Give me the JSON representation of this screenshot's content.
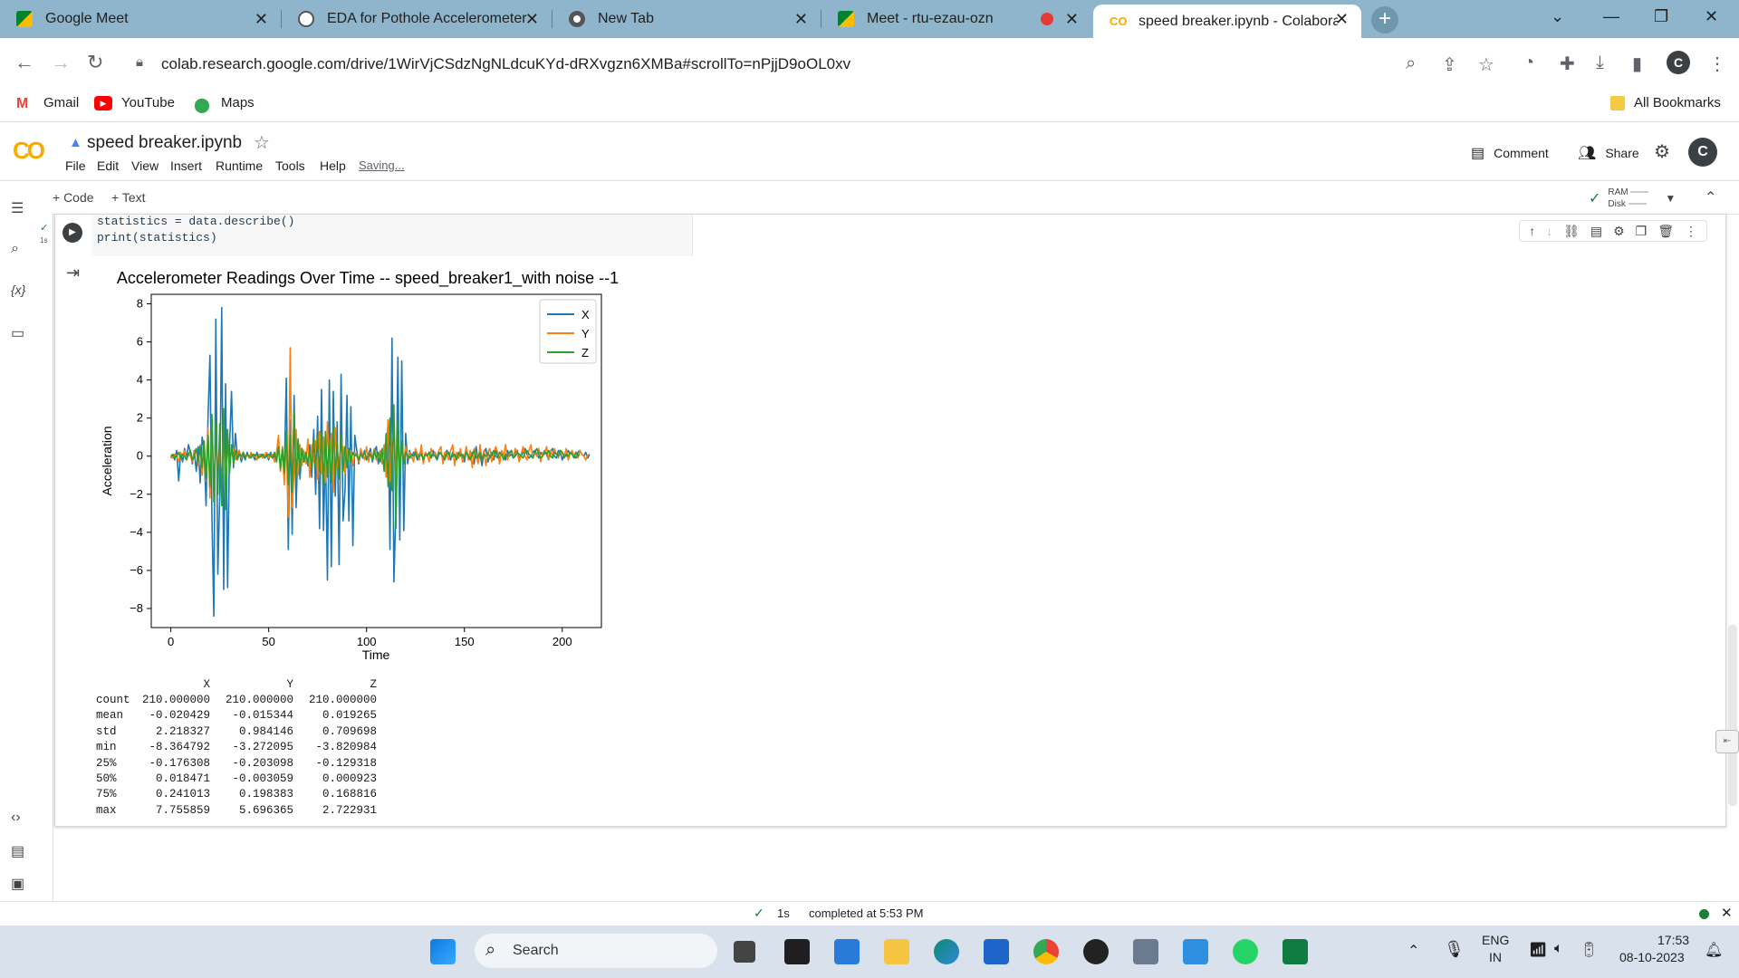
{
  "browser": {
    "tabs": [
      {
        "title": "Google Meet",
        "icon": "meet-icon"
      },
      {
        "title": "EDA for Pothole Accelerometer D",
        "icon": "openai-icon"
      },
      {
        "title": "New Tab",
        "icon": "chrome-icon"
      },
      {
        "title": "Meet - rtu-ezau-ozn",
        "icon": "meet-icon"
      },
      {
        "title": "speed breaker.ipynb - Colaborat",
        "icon": "colab-icon"
      }
    ],
    "url": "colab.research.google.com/drive/1WirVjCSdzNgNLdcuKYd-dRXvgzn6XMBa#scrollTo=nPjjD9oOL0xv",
    "profile_initial": "C",
    "bookmarks": [
      "Gmail",
      "YouTube",
      "Maps"
    ],
    "all_bookmarks": "All Bookmarks"
  },
  "colab": {
    "logo": "CO",
    "notebook_title": "speed breaker.ipynb",
    "menu": [
      "File",
      "Edit",
      "View",
      "Insert",
      "Runtime",
      "Tools",
      "Help"
    ],
    "saving": "Saving...",
    "comment": "Comment",
    "share": "Share",
    "user_initial": "C",
    "add_code": "+ Code",
    "add_text": "+ Text",
    "ram_label": "RAM",
    "disk_label": "Disk",
    "exec_time": "1s",
    "code_lines": [
      "statistics = data.describe()",
      "print(statistics)"
    ],
    "status_time": "1s",
    "status_text": "completed at 5:53 PM"
  },
  "stats_table": {
    "headers": [
      "X",
      "Y",
      "Z"
    ],
    "rows": [
      {
        "label": "count",
        "values": [
          "210.000000",
          "210.000000",
          "210.000000"
        ]
      },
      {
        "label": "mean",
        "values": [
          "-0.020429",
          "-0.015344",
          "0.019265"
        ]
      },
      {
        "label": "std",
        "values": [
          "2.218327",
          "0.984146",
          "0.709698"
        ]
      },
      {
        "label": "min",
        "values": [
          "-8.364792",
          "-3.272095",
          "-3.820984"
        ]
      },
      {
        "label": "25%",
        "values": [
          "-0.176308",
          "-0.203098",
          "-0.129318"
        ]
      },
      {
        "label": "50%",
        "values": [
          "0.018471",
          "-0.003059",
          "0.000923"
        ]
      },
      {
        "label": "75%",
        "values": [
          "0.241013",
          "0.198383",
          "0.168816"
        ]
      },
      {
        "label": "max",
        "values": [
          "7.755859",
          "5.696365",
          "2.722931"
        ]
      }
    ]
  },
  "chart_data": {
    "type": "line",
    "title": "Accelerometer Readings Over Time -- speed_breaker1_with noise --1",
    "xlabel": "Time",
    "ylabel": "Acceleration",
    "xlim": [
      -10,
      220
    ],
    "ylim": [
      -9,
      8.5
    ],
    "xticks": [
      0,
      50,
      100,
      150,
      200
    ],
    "yticks": [
      -8,
      -6,
      -4,
      -2,
      0,
      2,
      4,
      6,
      8
    ],
    "legend_position": "top-right",
    "series": [
      {
        "name": "X",
        "color": "#1f77b4",
        "values": [
          -0.1,
          0.1,
          -0.2,
          0.3,
          -1.3,
          0.2,
          -0.3,
          0.4,
          -0.1,
          0.6,
          0.2,
          -0.4,
          0.3,
          -0.8,
          0.5,
          -1.4,
          1.0,
          0.4,
          -2.6,
          2.1,
          5.3,
          -3.2,
          -8.4,
          7.2,
          -6.2,
          -2.1,
          7.8,
          -7.0,
          3.8,
          -6.9,
          0.5,
          3.4,
          -0.6,
          1.2,
          0.0,
          0.3,
          -0.3,
          0.1,
          -0.2,
          0.2,
          -0.1,
          0.1,
          0.0,
          -0.2,
          0.2,
          -0.1,
          0.1,
          0.0,
          -0.1,
          0.1,
          -0.2,
          0.2,
          -0.1,
          0.0,
          -0.2,
          0.4,
          -0.5,
          0.3,
          -0.8,
          4.1,
          -4.9,
          1.9,
          -4.1,
          3.2,
          -2.7,
          0.8,
          -1.2,
          0.4,
          -0.3,
          0.2,
          -0.5,
          0.6,
          -1.1,
          1.4,
          -2.0,
          2.1,
          -3.8,
          3.5,
          -3.9,
          0.6,
          -6.5,
          4.0,
          -5.8,
          3.4,
          -2.1,
          1.8,
          -5.7,
          4.3,
          -3.4,
          -1.8,
          3.2,
          -3.4,
          2.6,
          -4.7,
          1.1,
          0.3,
          -0.4,
          0.2,
          -0.1,
          0.3,
          -0.2,
          0.1,
          0.4,
          -0.3,
          0.2,
          0.5,
          -0.4,
          0.3,
          -0.2,
          0.4,
          -0.5,
          1.9,
          -4.9,
          6.2,
          -6.6,
          -2.8,
          5.2,
          -4.4,
          5.0,
          -3.9,
          1.2,
          -0.4,
          0.3,
          -0.1,
          0.2,
          0.1,
          -0.2,
          0.1,
          0.3,
          -0.2,
          0.1,
          0.0,
          0.2,
          -0.1,
          0.3,
          0.0,
          -0.2,
          0.1,
          0.2,
          -0.1,
          0.0,
          0.3,
          0.1,
          -0.2,
          0.2,
          0.0,
          0.1,
          -0.1,
          0.2,
          0.0,
          -0.3,
          0.3,
          0.0,
          -0.1,
          0.2,
          -0.4,
          0.5,
          -0.3,
          0.1,
          -0.5,
          0.2,
          0.4,
          -0.3,
          0.0,
          0.2,
          -0.2,
          0.3,
          0.0,
          -0.1,
          0.2,
          0.1,
          -0.2,
          0.3,
          0.0,
          0.1,
          -0.1,
          0.2,
          0.3,
          -0.1,
          0.0,
          0.2,
          0.4,
          0.1,
          -0.1,
          0.0,
          0.2,
          0.3,
          0.1,
          -0.1,
          0.2,
          0.0,
          0.3,
          0.1,
          -0.2,
          0.2,
          0.4,
          0.0,
          -0.1,
          0.3,
          0.2,
          -0.2,
          0.1,
          0.0,
          0.3,
          0.1,
          0.2,
          0.0,
          -0.1,
          0.2,
          0.3,
          0.1,
          0.0,
          0.2,
          -0.1,
          0.1
        ]
      },
      {
        "name": "Y",
        "color": "#ff7f0e",
        "values": [
          0.0,
          -0.1,
          0.1,
          0.0,
          -0.3,
          0.2,
          0.0,
          0.3,
          -0.2,
          0.1,
          0.0,
          -0.3,
          0.2,
          0.4,
          -0.5,
          0.6,
          -1.0,
          0.8,
          -1.3,
          1.5,
          -2.2,
          2.0,
          -1.9,
          1.3,
          -0.9,
          0.7,
          -1.6,
          1.1,
          -1.0,
          0.5,
          -0.3,
          0.2,
          0.4,
          -0.2,
          0.1,
          0.3,
          -0.1,
          0.2,
          0.0,
          0.1,
          -0.1,
          0.2,
          0.0,
          0.1,
          -0.2,
          0.1,
          0.0,
          -0.1,
          0.1,
          0.2,
          -0.1,
          0.0,
          0.1,
          -0.3,
          0.2,
          1.1,
          -0.8,
          0.5,
          -1.5,
          0.9,
          -3.2,
          5.7,
          -2.7,
          -0.8,
          1.4,
          -1.0,
          0.6,
          -0.5,
          0.3,
          -0.4,
          0.9,
          -1.1,
          0.6,
          -0.3,
          0.8,
          -1.2,
          1.3,
          -0.9,
          1.0,
          -1.4,
          1.8,
          -0.8,
          1.2,
          -1.9,
          1.5,
          -0.6,
          -0.3,
          0.7,
          0.5,
          -0.9,
          0.4,
          -0.2,
          0.3,
          -0.5,
          0.2,
          0.0,
          -0.3,
          0.4,
          0.1,
          -0.2,
          0.5,
          -0.3,
          0.2,
          -0.1,
          0.4,
          -0.2,
          0.0,
          0.3,
          -0.4,
          0.6,
          -1.1,
          1.9,
          -1.3,
          0.4,
          1.7,
          -1.2,
          0.8,
          -0.6,
          0.3,
          -0.2,
          0.5,
          -0.1,
          0.2,
          0.0,
          -0.3,
          0.4,
          0.1,
          -0.2,
          0.6,
          -0.4,
          0.2,
          0.1,
          -0.3,
          0.4,
          0.0,
          0.2,
          -0.1,
          0.3,
          0.5,
          -0.4,
          0.2,
          0.1,
          -0.2,
          0.3,
          0.6,
          -0.5,
          0.2,
          -0.1,
          0.4,
          -0.3,
          0.0,
          0.5,
          -0.2,
          0.3,
          -0.6,
          0.4,
          0.1,
          -0.4,
          0.6,
          -0.2,
          0.3,
          -0.5,
          0.2,
          0.4,
          -0.3,
          0.1,
          0.5,
          0.2,
          -0.4,
          0.3,
          0.0,
          0.6,
          -0.2,
          0.1,
          0.3,
          -0.1,
          0.4,
          0.2,
          -0.3,
          0.1,
          0.5,
          0.0,
          -0.2,
          0.3,
          0.6,
          -0.1,
          0.2,
          0.0,
          0.4,
          -0.3,
          0.2,
          0.1,
          0.5,
          -0.2,
          0.3,
          0.0,
          0.4,
          0.1,
          -0.1,
          0.3,
          0.2,
          0.0,
          0.4,
          -0.2,
          0.1,
          0.3,
          0.0,
          0.2,
          -0.1,
          0.3,
          0.1,
          0.0,
          -0.2,
          0.1
        ]
      },
      {
        "name": "Z",
        "color": "#2ca02c",
        "values": [
          0.0,
          0.1,
          -0.1,
          0.0,
          0.2,
          -0.1,
          0.1,
          0.0,
          -0.2,
          0.1,
          0.3,
          -0.2,
          0.0,
          0.4,
          -0.3,
          0.5,
          -0.6,
          0.8,
          -1.2,
          1.1,
          -1.6,
          2.2,
          -2.4,
          1.8,
          -2.0,
          1.7,
          -2.6,
          2.5,
          -2.8,
          1.4,
          -0.9,
          0.6,
          -0.4,
          0.3,
          -0.2,
          0.1,
          0.0,
          0.2,
          -0.1,
          0.1,
          0.0,
          -0.1,
          0.1,
          0.0,
          0.1,
          -0.1,
          0.0,
          0.1,
          -0.1,
          0.0,
          0.1,
          0.0,
          -0.1,
          0.2,
          -0.3,
          0.5,
          -0.7,
          0.4,
          -0.9,
          1.3,
          -1.5,
          1.1,
          -1.9,
          2.4,
          -1.2,
          0.9,
          -0.6,
          0.4,
          -0.3,
          0.2,
          -0.4,
          0.3,
          -0.6,
          0.8,
          -0.5,
          1.0,
          -0.8,
          1.2,
          -1.5,
          1.3,
          -1.1,
          0.9,
          -1.4,
          1.6,
          -1.0,
          0.7,
          -1.2,
          1.1,
          -0.8,
          0.5,
          -0.6,
          0.4,
          -0.3,
          0.2,
          0.0,
          0.1,
          -0.2,
          0.1,
          0.0,
          0.2,
          -0.1,
          0.0,
          0.1,
          -0.2,
          0.3,
          -0.1,
          0.2,
          -0.3,
          0.4,
          -0.8,
          1.2,
          -1.6,
          2.0,
          -1.8,
          2.7,
          -3.8,
          1.9,
          -1.2,
          0.8,
          -0.4,
          0.2,
          0.0,
          -0.1,
          0.1,
          0.0,
          0.2,
          -0.1,
          0.0,
          0.1,
          -0.2,
          0.1,
          0.0,
          0.2,
          -0.1,
          0.1,
          0.0,
          -0.1,
          0.2,
          0.1,
          0.0,
          -0.2,
          0.1,
          0.2,
          -0.1,
          0.0,
          0.1,
          -0.2,
          0.2,
          0.0,
          0.1,
          -0.1,
          0.2,
          0.0,
          -0.2,
          0.1,
          0.3,
          -0.1,
          0.0,
          0.2,
          -0.2,
          0.1,
          0.0,
          0.2,
          -0.1,
          0.1,
          0.3,
          0.0,
          -0.1,
          0.2,
          0.1,
          -0.2,
          0.1,
          0.0,
          0.2,
          0.3,
          -0.1,
          0.0,
          0.2,
          0.1,
          0.0,
          -0.1,
          0.2,
          0.3,
          0.1,
          0.0,
          -0.1,
          0.2,
          0.4,
          0.1,
          -0.1,
          0.0,
          0.2,
          0.1,
          0.3,
          0.0,
          -0.1,
          0.2,
          0.1,
          0.0,
          0.3,
          0.2,
          -0.1,
          0.1,
          0.0,
          0.2,
          0.1,
          -0.1,
          0.2,
          0.0,
          0.1
        ]
      }
    ]
  },
  "taskbar": {
    "search_placeholder": "Search",
    "lang_line1": "ENG",
    "lang_line2": "IN",
    "time": "17:53",
    "date": "08-10-2023"
  },
  "colors": {
    "tabstrip": "#8eb5cb",
    "colab_orange": "#f9ab00",
    "taskbar": "#d9e2ec"
  }
}
